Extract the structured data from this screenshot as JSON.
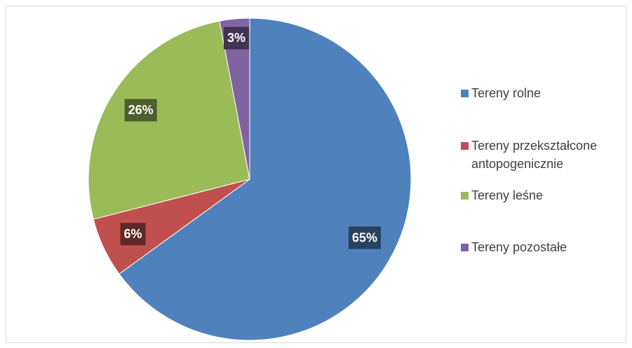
{
  "chart_data": {
    "type": "pie",
    "categories": [
      "Tereny rolne",
      "Tereny przekształcone antopogenicznie",
      "Tereny leśne",
      "Tereny pozostałe"
    ],
    "values": [
      65,
      6,
      26,
      3
    ],
    "value_labels": [
      "65%",
      "6%",
      "26%",
      "3%"
    ],
    "colors": [
      "#4f81bd",
      "#c0504d",
      "#9bbb59",
      "#8064a2"
    ],
    "legend": "right"
  }
}
